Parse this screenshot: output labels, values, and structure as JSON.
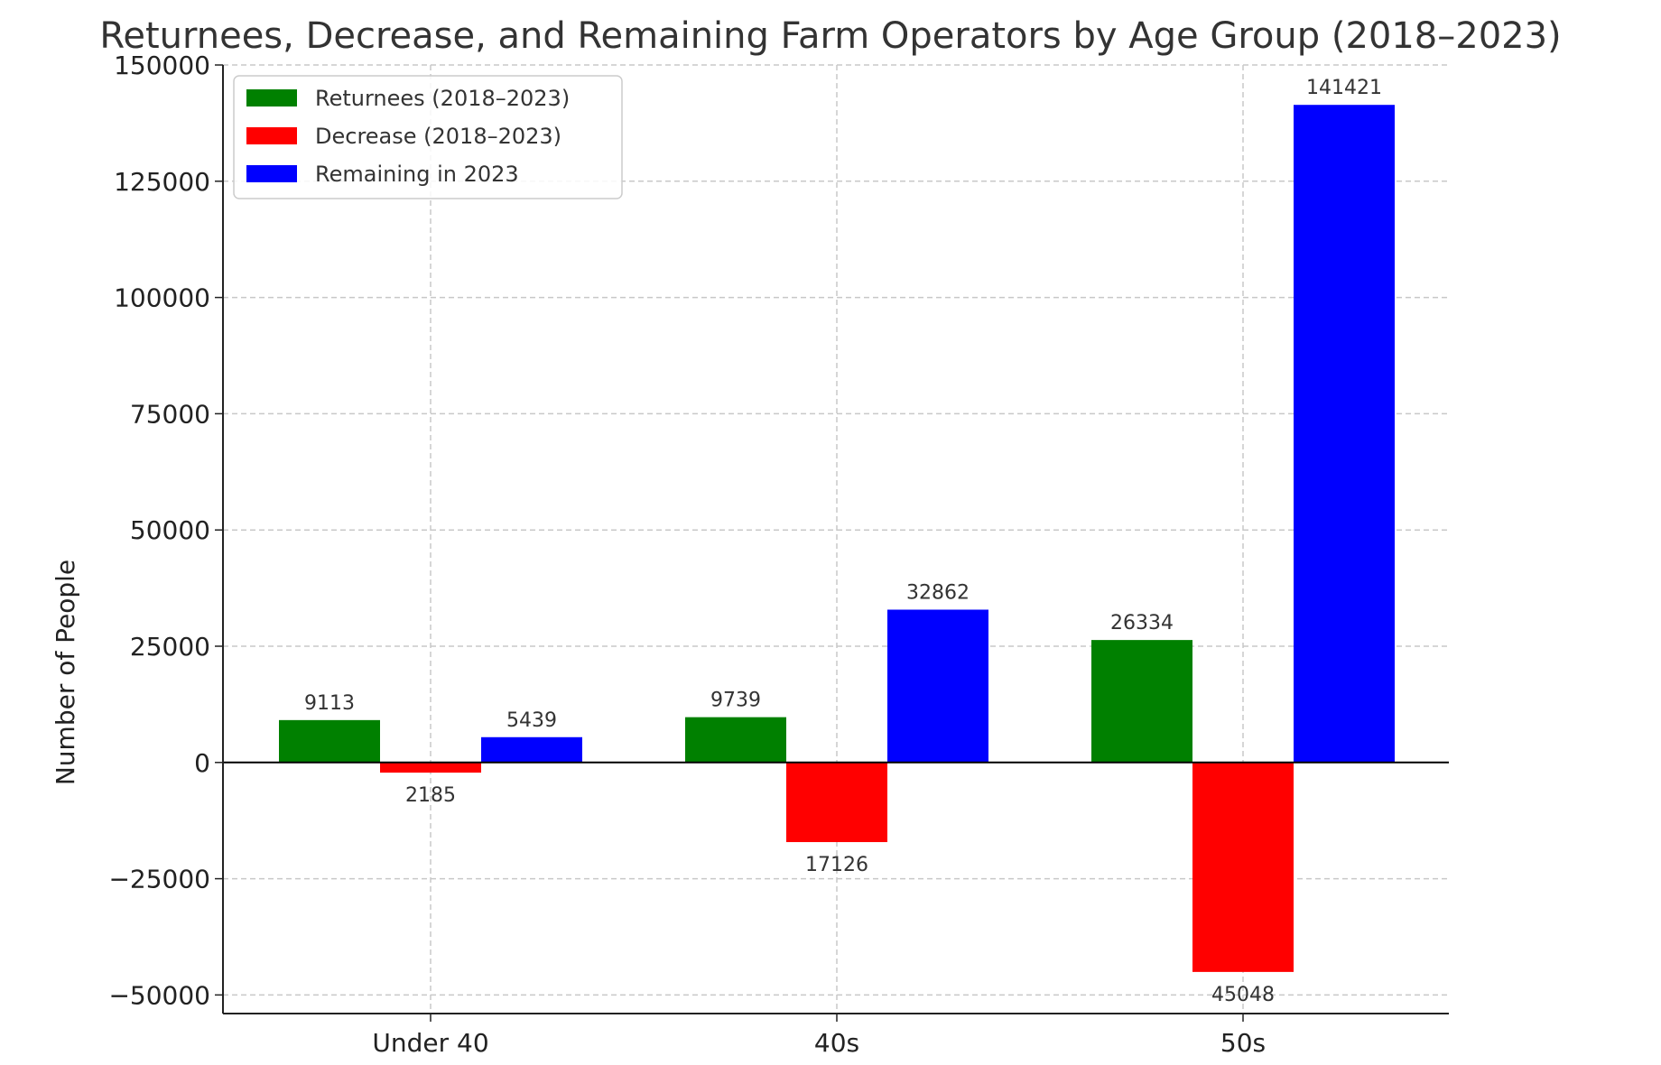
{
  "chart_data": {
    "type": "bar",
    "title": "Returnees, Decrease, and Remaining Farm Operators by Age Group (2018–2023)",
    "xlabel": "",
    "ylabel": "Number of People",
    "categories": [
      "Under 40",
      "40s",
      "50s"
    ],
    "series": [
      {
        "name": "Returnees (2018–2023)",
        "color": "#008000",
        "values": [
          9113,
          9739,
          26334
        ],
        "labels": [
          "9113",
          "9739",
          "26334"
        ]
      },
      {
        "name": "Decrease (2018–2023)",
        "color": "#ff0000",
        "values": [
          -2185,
          -17126,
          -45048
        ],
        "labels": [
          "2185",
          "17126",
          "45048"
        ]
      },
      {
        "name": "Remaining in 2023",
        "color": "#0000ff",
        "values": [
          5439,
          32862,
          141421
        ],
        "labels": [
          "5439",
          "32862",
          "141421"
        ]
      }
    ],
    "ylim": [
      -54000,
      150000
    ],
    "yticks": [
      -50000,
      -25000,
      0,
      25000,
      50000,
      75000,
      100000,
      125000,
      150000
    ],
    "ytick_labels": [
      "−50000",
      "−25000",
      "0",
      "25000",
      "50000",
      "75000",
      "100000",
      "125000",
      "150000"
    ],
    "grid": true,
    "legend_position": "top-left"
  }
}
